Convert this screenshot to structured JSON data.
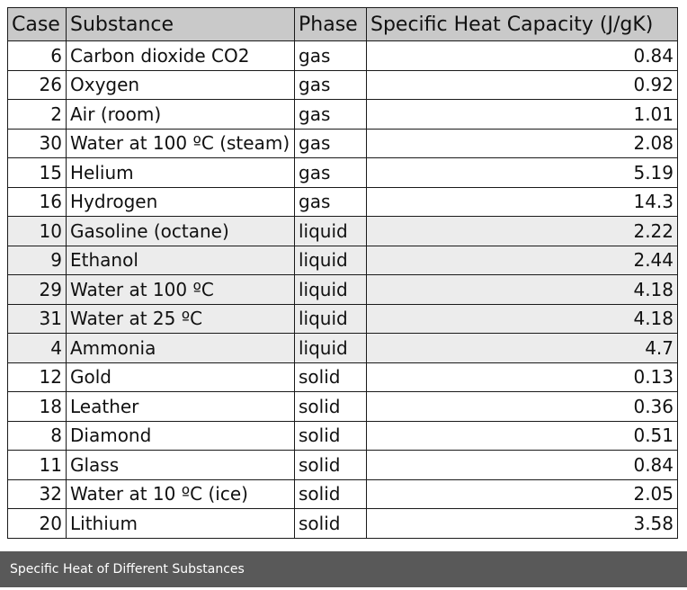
{
  "table": {
    "headers": [
      "Case",
      "Substance",
      "Phase",
      "Specific Heat Capacity (J/gK)"
    ],
    "rows": [
      {
        "case": "6",
        "substance": "Carbon dioxide CO2",
        "phase": "gas",
        "heat": "0.84"
      },
      {
        "case": "26",
        "substance": "Oxygen",
        "phase": "gas",
        "heat": "0.92"
      },
      {
        "case": "2",
        "substance": "Air (room)",
        "phase": "gas",
        "heat": "1.01"
      },
      {
        "case": "30",
        "substance": "Water at 100 ºC (steam)",
        "phase": "gas",
        "heat": "2.08"
      },
      {
        "case": "15",
        "substance": "Helium",
        "phase": "gas",
        "heat": "5.19"
      },
      {
        "case": "16",
        "substance": "Hydrogen",
        "phase": "gas",
        "heat": "14.3"
      },
      {
        "case": "10",
        "substance": "Gasoline (octane)",
        "phase": "liquid",
        "heat": "2.22"
      },
      {
        "case": "9",
        "substance": "Ethanol",
        "phase": "liquid",
        "heat": "2.44"
      },
      {
        "case": "29",
        "substance": "Water at 100 ºC",
        "phase": "liquid",
        "heat": "4.18"
      },
      {
        "case": "31",
        "substance": "Water at 25 ºC",
        "phase": "liquid",
        "heat": "4.18"
      },
      {
        "case": "4",
        "substance": "Ammonia",
        "phase": "liquid",
        "heat": "4.7"
      },
      {
        "case": "12",
        "substance": "Gold",
        "phase": "solid",
        "heat": "0.13"
      },
      {
        "case": "18",
        "substance": "Leather",
        "phase": "solid",
        "heat": "0.36"
      },
      {
        "case": "8",
        "substance": "Diamond",
        "phase": "solid",
        "heat": "0.51"
      },
      {
        "case": "11",
        "substance": "Glass",
        "phase": "solid",
        "heat": "0.84"
      },
      {
        "case": "32",
        "substance": "Water at 10 ºC (ice)",
        "phase": "solid",
        "heat": "2.05"
      },
      {
        "case": "20",
        "substance": "Lithium",
        "phase": "solid",
        "heat": "3.58"
      }
    ]
  },
  "caption": "Specific Heat of Different Substances",
  "colors": {
    "header_bg": "#c9c9c9",
    "liquid_row_bg": "#ececec",
    "caption_bg": "#595959",
    "border": "#1a1a1a"
  }
}
